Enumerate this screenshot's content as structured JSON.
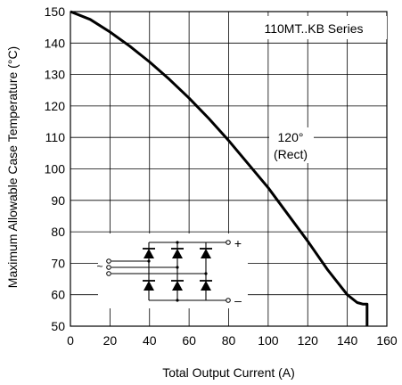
{
  "chart_data": {
    "type": "line",
    "title": "",
    "xlabel": "Total Output Current (A)",
    "ylabel": "Maximum Allowable Case Temperature (°C)",
    "xlim": [
      0,
      160
    ],
    "ylim": [
      50,
      150
    ],
    "xticks": [
      0,
      20,
      40,
      60,
      80,
      100,
      120,
      140,
      160
    ],
    "yticks": [
      50,
      60,
      70,
      80,
      90,
      100,
      110,
      120,
      130,
      140,
      150
    ],
    "grid": true,
    "series": [
      {
        "x": [
          0,
          10,
          20,
          30,
          40,
          50,
          60,
          70,
          80,
          90,
          100,
          110,
          120,
          130,
          140,
          145,
          148,
          150,
          150
        ],
        "y": [
          150,
          147.5,
          143.5,
          139,
          134,
          128.5,
          122.5,
          116,
          109,
          101.5,
          94,
          85.5,
          77,
          68,
          60,
          57.5,
          57,
          57,
          50
        ]
      }
    ],
    "annotations": {
      "series_label": "110MT..KB Series",
      "angle_label": "120°",
      "waveform_label": "(Rect)",
      "circuit_plus": "+",
      "circuit_minus": "–",
      "circuit_ac": "~"
    }
  }
}
